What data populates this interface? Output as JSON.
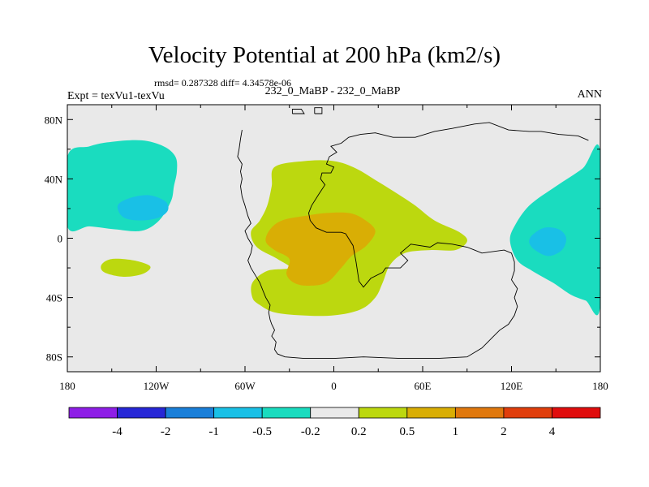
{
  "chart_data": {
    "type": "contour_map",
    "title": "Velocity Potential at 200 hPa (km2/s)",
    "stats": "rmsd= 0.287328 diff= 4.34578e-06",
    "left_label": "Expt = texVu1-texVu",
    "center_label": "232_0_MaBP - 232_0_MaBP",
    "right_label": "ANN",
    "xlim": [
      -180,
      180
    ],
    "ylim": [
      -90,
      90
    ],
    "x_ticks": [
      {
        "value": -180,
        "label": "180"
      },
      {
        "value": -120,
        "label": "120W"
      },
      {
        "value": -60,
        "label": "60W"
      },
      {
        "value": 0,
        "label": "0"
      },
      {
        "value": 60,
        "label": "60E"
      },
      {
        "value": 120,
        "label": "120E"
      },
      {
        "value": 180,
        "label": "180"
      }
    ],
    "y_ticks": [
      {
        "value": 80,
        "label": "80N"
      },
      {
        "value": 40,
        "label": "40N"
      },
      {
        "value": 0,
        "label": "0"
      },
      {
        "value": -40,
        "label": "40S"
      },
      {
        "value": -80,
        "label": "80S"
      }
    ],
    "colorbar": {
      "colors": [
        "#8e1ee6",
        "#2727d6",
        "#1a7fd9",
        "#19c0e6",
        "#1adcbf",
        "#e9e9e9",
        "#bcd80f",
        "#d9ae05",
        "#e0780d",
        "#e03e0c",
        "#e00d0d"
      ],
      "labels": [
        "-4",
        "-2",
        "-1",
        "-0.5",
        "-0.2",
        "0.2",
        "0.5",
        "1",
        "2",
        "4"
      ]
    },
    "regions": [
      {
        "level_index": 4,
        "name": "north-pacific-negative",
        "pts": [
          [
            -180,
            55
          ],
          [
            -165,
            62
          ],
          [
            -150,
            65
          ],
          [
            -130,
            66
          ],
          [
            -115,
            62
          ],
          [
            -107,
            55
          ],
          [
            -106,
            45
          ],
          [
            -108,
            35
          ],
          [
            -110,
            25
          ],
          [
            -118,
            12
          ],
          [
            -130,
            5
          ],
          [
            -148,
            6
          ],
          [
            -165,
            8
          ],
          [
            -180,
            8
          ]
        ]
      },
      {
        "level_index": 3,
        "name": "north-pacific-core",
        "pts": [
          [
            -146,
            22
          ],
          [
            -138,
            27
          ],
          [
            -125,
            29
          ],
          [
            -114,
            25
          ],
          [
            -112,
            19
          ],
          [
            -118,
            14
          ],
          [
            -130,
            12
          ],
          [
            -142,
            14
          ]
        ]
      },
      {
        "level_index": 4,
        "name": "west-pacific-negative",
        "pts": [
          [
            180,
            58
          ],
          [
            168,
            47
          ],
          [
            150,
            35
          ],
          [
            132,
            22
          ],
          [
            122,
            8
          ],
          [
            119,
            -2
          ],
          [
            124,
            -15
          ],
          [
            134,
            -22
          ],
          [
            148,
            -30
          ],
          [
            160,
            -38
          ],
          [
            170,
            -42
          ],
          [
            180,
            -45
          ]
        ]
      },
      {
        "level_index": 3,
        "name": "west-pacific-core",
        "pts": [
          [
            134,
            2
          ],
          [
            142,
            7
          ],
          [
            152,
            6
          ],
          [
            157,
            0
          ],
          [
            154,
            -8
          ],
          [
            145,
            -12
          ],
          [
            136,
            -8
          ],
          [
            132,
            -3
          ]
        ]
      },
      {
        "level_index": 6,
        "name": "atlantic-africa-positive",
        "pts": [
          [
            -40,
            48
          ],
          [
            -20,
            52
          ],
          [
            0,
            52
          ],
          [
            15,
            47
          ],
          [
            30,
            38
          ],
          [
            43,
            30
          ],
          [
            55,
            22
          ],
          [
            68,
            12
          ],
          [
            85,
            4
          ],
          [
            90,
            -2
          ],
          [
            82,
            -8
          ],
          [
            65,
            -8
          ],
          [
            48,
            -10
          ],
          [
            38,
            -18
          ],
          [
            33,
            -30
          ],
          [
            28,
            -40
          ],
          [
            18,
            -48
          ],
          [
            0,
            -52
          ],
          [
            -22,
            -52
          ],
          [
            -40,
            -50
          ],
          [
            -50,
            -45
          ],
          [
            -55,
            -40
          ],
          [
            -55,
            -30
          ],
          [
            -45,
            -22
          ],
          [
            -30,
            -20
          ],
          [
            -38,
            -14
          ],
          [
            -52,
            -6
          ],
          [
            -56,
            4
          ],
          [
            -50,
            12
          ],
          [
            -45,
            22
          ],
          [
            -42,
            35
          ]
        ]
      },
      {
        "level_index": 7,
        "name": "tropical-positive-core",
        "pts": [
          [
            -43,
            6
          ],
          [
            -35,
            12
          ],
          [
            -20,
            15
          ],
          [
            -5,
            17
          ],
          [
            10,
            17
          ],
          [
            20,
            13
          ],
          [
            28,
            5
          ],
          [
            22,
            -5
          ],
          [
            12,
            -12
          ],
          [
            5,
            -20
          ],
          [
            -5,
            -30
          ],
          [
            -18,
            -32
          ],
          [
            -27,
            -30
          ],
          [
            -32,
            -24
          ],
          [
            -30,
            -14
          ],
          [
            -40,
            -8
          ],
          [
            -46,
            -2
          ]
        ]
      },
      {
        "level_index": 6,
        "name": "south-pacific-positive",
        "pts": [
          [
            -157,
            -18
          ],
          [
            -150,
            -14
          ],
          [
            -135,
            -15
          ],
          [
            -124,
            -19
          ],
          [
            -129,
            -24
          ],
          [
            -142,
            -26
          ],
          [
            -155,
            -23
          ]
        ]
      }
    ],
    "coastlines": [
      [
        [
          -28,
          84
        ],
        [
          -20,
          84
        ],
        [
          -22,
          87
        ],
        [
          -28,
          87
        ],
        [
          -28,
          84
        ]
      ],
      [
        [
          -13,
          84
        ],
        [
          -8,
          84
        ],
        [
          -8,
          88
        ],
        [
          -13,
          88
        ],
        [
          -13,
          84
        ]
      ],
      [
        [
          -62,
          73
        ],
        [
          -63,
          67
        ],
        [
          -64,
          60
        ],
        [
          -65,
          55
        ],
        [
          -62,
          50
        ],
        [
          -63,
          45
        ],
        [
          -62,
          40
        ],
        [
          -63,
          35
        ],
        [
          -62,
          28
        ],
        [
          -60,
          22
        ],
        [
          -58,
          15
        ],
        [
          -56,
          10
        ],
        [
          -60,
          5
        ],
        [
          -58,
          0
        ],
        [
          -55,
          -5
        ],
        [
          -56,
          -10
        ],
        [
          -58,
          -15
        ],
        [
          -56,
          -20
        ],
        [
          -53,
          -25
        ],
        [
          -50,
          -30
        ],
        [
          -48,
          -35
        ],
        [
          -46,
          -40
        ],
        [
          -43,
          -45
        ],
        [
          -44,
          -50
        ],
        [
          -43,
          -55
        ],
        [
          -42,
          -58
        ],
        [
          -40,
          -62
        ],
        [
          -42,
          -66
        ],
        [
          -39,
          -70
        ],
        [
          -40,
          -75
        ],
        [
          -38,
          -78
        ],
        [
          -33,
          -80
        ],
        [
          -20,
          -81
        ],
        [
          0,
          -81
        ],
        [
          20,
          -80
        ],
        [
          45,
          -81
        ],
        [
          70,
          -81
        ],
        [
          90,
          -80
        ],
        [
          100,
          -74
        ],
        [
          104,
          -70
        ],
        [
          108,
          -66
        ],
        [
          112,
          -62
        ],
        [
          118,
          -58
        ],
        [
          122,
          -52
        ],
        [
          124,
          -46
        ],
        [
          122,
          -40
        ],
        [
          124,
          -34
        ],
        [
          120,
          -28
        ],
        [
          122,
          -22
        ],
        [
          122,
          -16
        ],
        [
          120,
          -10
        ],
        [
          115,
          -8
        ],
        [
          100,
          -10
        ],
        [
          95,
          -8
        ],
        [
          90,
          -6
        ],
        [
          80,
          -4
        ],
        [
          70,
          -3
        ],
        [
          65,
          -6
        ],
        [
          52,
          -4
        ],
        [
          45,
          -10
        ],
        [
          50,
          -15
        ],
        [
          45,
          -20
        ],
        [
          35,
          -20
        ],
        [
          33,
          -23
        ],
        [
          25,
          -27
        ],
        [
          20,
          -33
        ],
        [
          17,
          -29
        ],
        [
          15,
          -16
        ],
        [
          13,
          -5
        ],
        [
          8,
          3
        ],
        [
          5,
          4
        ],
        [
          0,
          4
        ],
        [
          -5,
          4
        ],
        [
          -12,
          7
        ],
        [
          -16,
          12
        ],
        [
          -17,
          17
        ],
        [
          -15,
          22
        ],
        [
          -10,
          30
        ],
        [
          -6,
          36
        ],
        [
          -9,
          40
        ],
        [
          -8,
          44
        ],
        [
          -2,
          44
        ],
        [
          0,
          48
        ],
        [
          -5,
          50
        ],
        [
          -3,
          55
        ],
        [
          2,
          58
        ],
        [
          -2,
          62
        ],
        [
          5,
          64
        ],
        [
          10,
          68
        ],
        [
          18,
          70
        ],
        [
          28,
          71
        ],
        [
          40,
          68
        ],
        [
          55,
          68
        ],
        [
          68,
          72
        ],
        [
          80,
          74
        ],
        [
          95,
          77
        ],
        [
          105,
          78
        ],
        [
          118,
          73
        ],
        [
          132,
          72
        ],
        [
          140,
          72
        ],
        [
          152,
          70
        ],
        [
          165,
          69
        ],
        [
          172,
          66
        ]
      ]
    ]
  }
}
